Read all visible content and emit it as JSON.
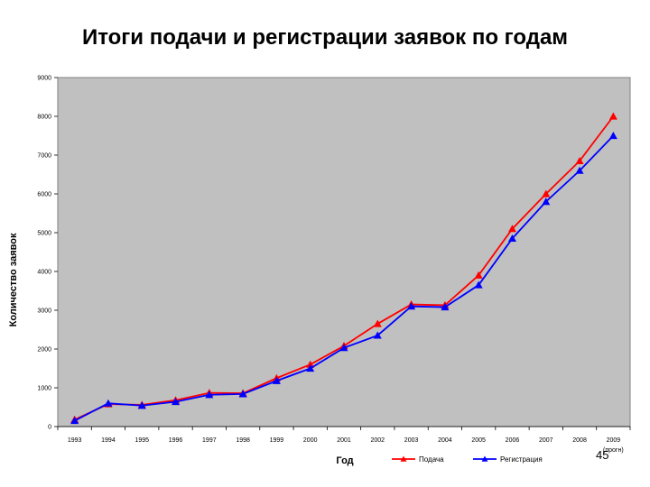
{
  "slide": {
    "title": "Итоги подачи и регистрации заявок по годам",
    "page_number": "45"
  },
  "colors": {
    "plot_background": "#c0c0c0",
    "series_1": "#ff0000",
    "series_2": "#0000ff"
  },
  "chart_data": {
    "type": "line",
    "title": "Итоги подачи и регистрации заявок по годам",
    "xlabel": "Год",
    "ylabel": "Количество заявок",
    "categories": [
      "1993",
      "1994",
      "1995",
      "1996",
      "1997",
      "1998",
      "1999",
      "2000",
      "2001",
      "2002",
      "2003",
      "2004",
      "2005",
      "2006",
      "2007",
      "2008",
      "2009"
    ],
    "x_note": "(прогн)",
    "ylim": [
      0,
      9000
    ],
    "yticks": [
      0,
      1000,
      2000,
      3000,
      4000,
      5000,
      6000,
      7000,
      8000,
      9000
    ],
    "grid": false,
    "legend_position": "bottom",
    "marker": "triangle",
    "series": [
      {
        "name": "Подача",
        "color": "#ff0000",
        "values": [
          180,
          580,
          560,
          680,
          870,
          860,
          1250,
          1600,
          2080,
          2650,
          3150,
          3130,
          3900,
          5100,
          6000,
          6850,
          8000
        ]
      },
      {
        "name": "Регистрация",
        "color": "#0000ff",
        "values": [
          150,
          600,
          540,
          640,
          820,
          840,
          1180,
          1500,
          2030,
          2350,
          3100,
          3080,
          3650,
          4850,
          5800,
          6600,
          7500
        ]
      }
    ]
  }
}
